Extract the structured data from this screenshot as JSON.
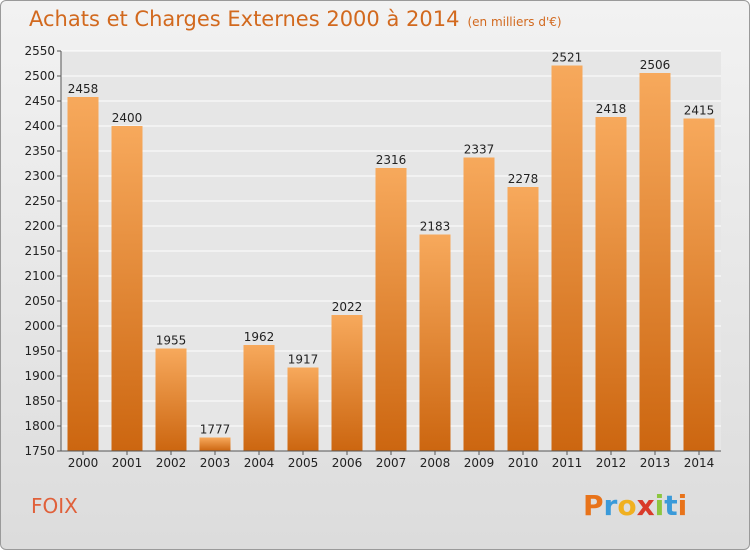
{
  "header": {
    "title": "Achats et Charges Externes 2000 à 2014",
    "subtitle": "(en milliers d'€)"
  },
  "footer": {
    "city": "FOIX",
    "logo_letters": [
      "P",
      "r",
      "o",
      "x",
      "i",
      "t",
      "i"
    ],
    "logo_colors": [
      "#e8731a",
      "#3a9ad9",
      "#f0b020",
      "#d93a2a",
      "#8cc63f",
      "#3a9ad9",
      "#e8731a"
    ]
  },
  "chart_data": {
    "type": "bar",
    "title": "Achats et Charges Externes 2000 à 2014",
    "subtitle": "(en milliers d'€)",
    "categories": [
      "2000",
      "2001",
      "2002",
      "2003",
      "2004",
      "2005",
      "2006",
      "2007",
      "2008",
      "2009",
      "2010",
      "2011",
      "2012",
      "2013",
      "2014"
    ],
    "values": [
      2458,
      2400,
      1955,
      1777,
      1962,
      1917,
      2022,
      2316,
      2183,
      2337,
      2278,
      2521,
      2418,
      2506,
      2415
    ],
    "ylim": [
      1750,
      2550
    ],
    "yticks": [
      1750,
      1800,
      1850,
      1900,
      1950,
      2000,
      2050,
      2100,
      2150,
      2200,
      2250,
      2300,
      2350,
      2400,
      2450,
      2500,
      2550
    ],
    "grid": true,
    "colors": {
      "bar_light": "#f5a55a",
      "bar_dark": "#cf6a14",
      "grid": "#ffffff",
      "text": "#222222"
    }
  }
}
